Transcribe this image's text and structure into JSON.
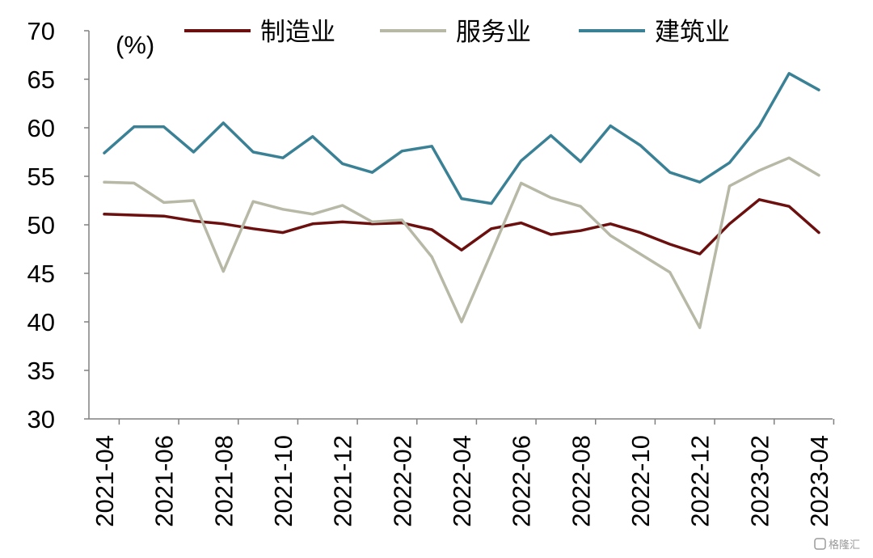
{
  "chart_data": {
    "type": "line",
    "title": "",
    "xlabel": "",
    "ylabel": "",
    "unit_label": "(%)",
    "ylim": [
      30,
      70
    ],
    "yticks": [
      30,
      35,
      40,
      45,
      50,
      55,
      60,
      65,
      70
    ],
    "grid": false,
    "legend_position": "top",
    "x": [
      "2021-04",
      "2021-05",
      "2021-06",
      "2021-07",
      "2021-08",
      "2021-09",
      "2021-10",
      "2021-11",
      "2021-12",
      "2022-01",
      "2022-02",
      "2022-03",
      "2022-04",
      "2022-05",
      "2022-06",
      "2022-07",
      "2022-08",
      "2022-09",
      "2022-10",
      "2022-11",
      "2022-12",
      "2023-01",
      "2023-02",
      "2023-03",
      "2023-04"
    ],
    "xtick_labels": [
      "2021-04",
      "2021-06",
      "2021-08",
      "2021-10",
      "2021-12",
      "2022-02",
      "2022-04",
      "2022-06",
      "2022-08",
      "2022-10",
      "2022-12",
      "2023-02",
      "2023-04"
    ],
    "series": [
      {
        "name": "制造业",
        "color": "#6B0F0F",
        "values": [
          51.1,
          51.0,
          50.9,
          50.4,
          50.1,
          49.6,
          49.2,
          50.1,
          50.3,
          50.1,
          50.2,
          49.5,
          47.4,
          49.6,
          50.2,
          49.0,
          49.4,
          50.1,
          49.2,
          48.0,
          47.0,
          50.1,
          52.6,
          51.9,
          49.2
        ]
      },
      {
        "name": "服务业",
        "color": "#B8B8A6",
        "values": [
          54.4,
          54.3,
          52.3,
          52.5,
          45.2,
          52.4,
          51.6,
          51.1,
          52.0,
          50.3,
          50.5,
          46.7,
          40.0,
          47.1,
          54.3,
          52.8,
          51.9,
          48.9,
          47.0,
          45.1,
          39.4,
          54.0,
          55.6,
          56.9,
          55.1
        ]
      },
      {
        "name": "建筑业",
        "color": "#3A8196",
        "values": [
          57.4,
          60.1,
          60.1,
          57.5,
          60.5,
          57.5,
          56.9,
          59.1,
          56.3,
          55.4,
          57.6,
          58.1,
          52.7,
          52.2,
          56.6,
          59.2,
          56.5,
          60.2,
          58.2,
          55.4,
          54.4,
          56.4,
          60.2,
          65.6,
          63.9
        ]
      }
    ]
  },
  "watermark": "格隆汇"
}
